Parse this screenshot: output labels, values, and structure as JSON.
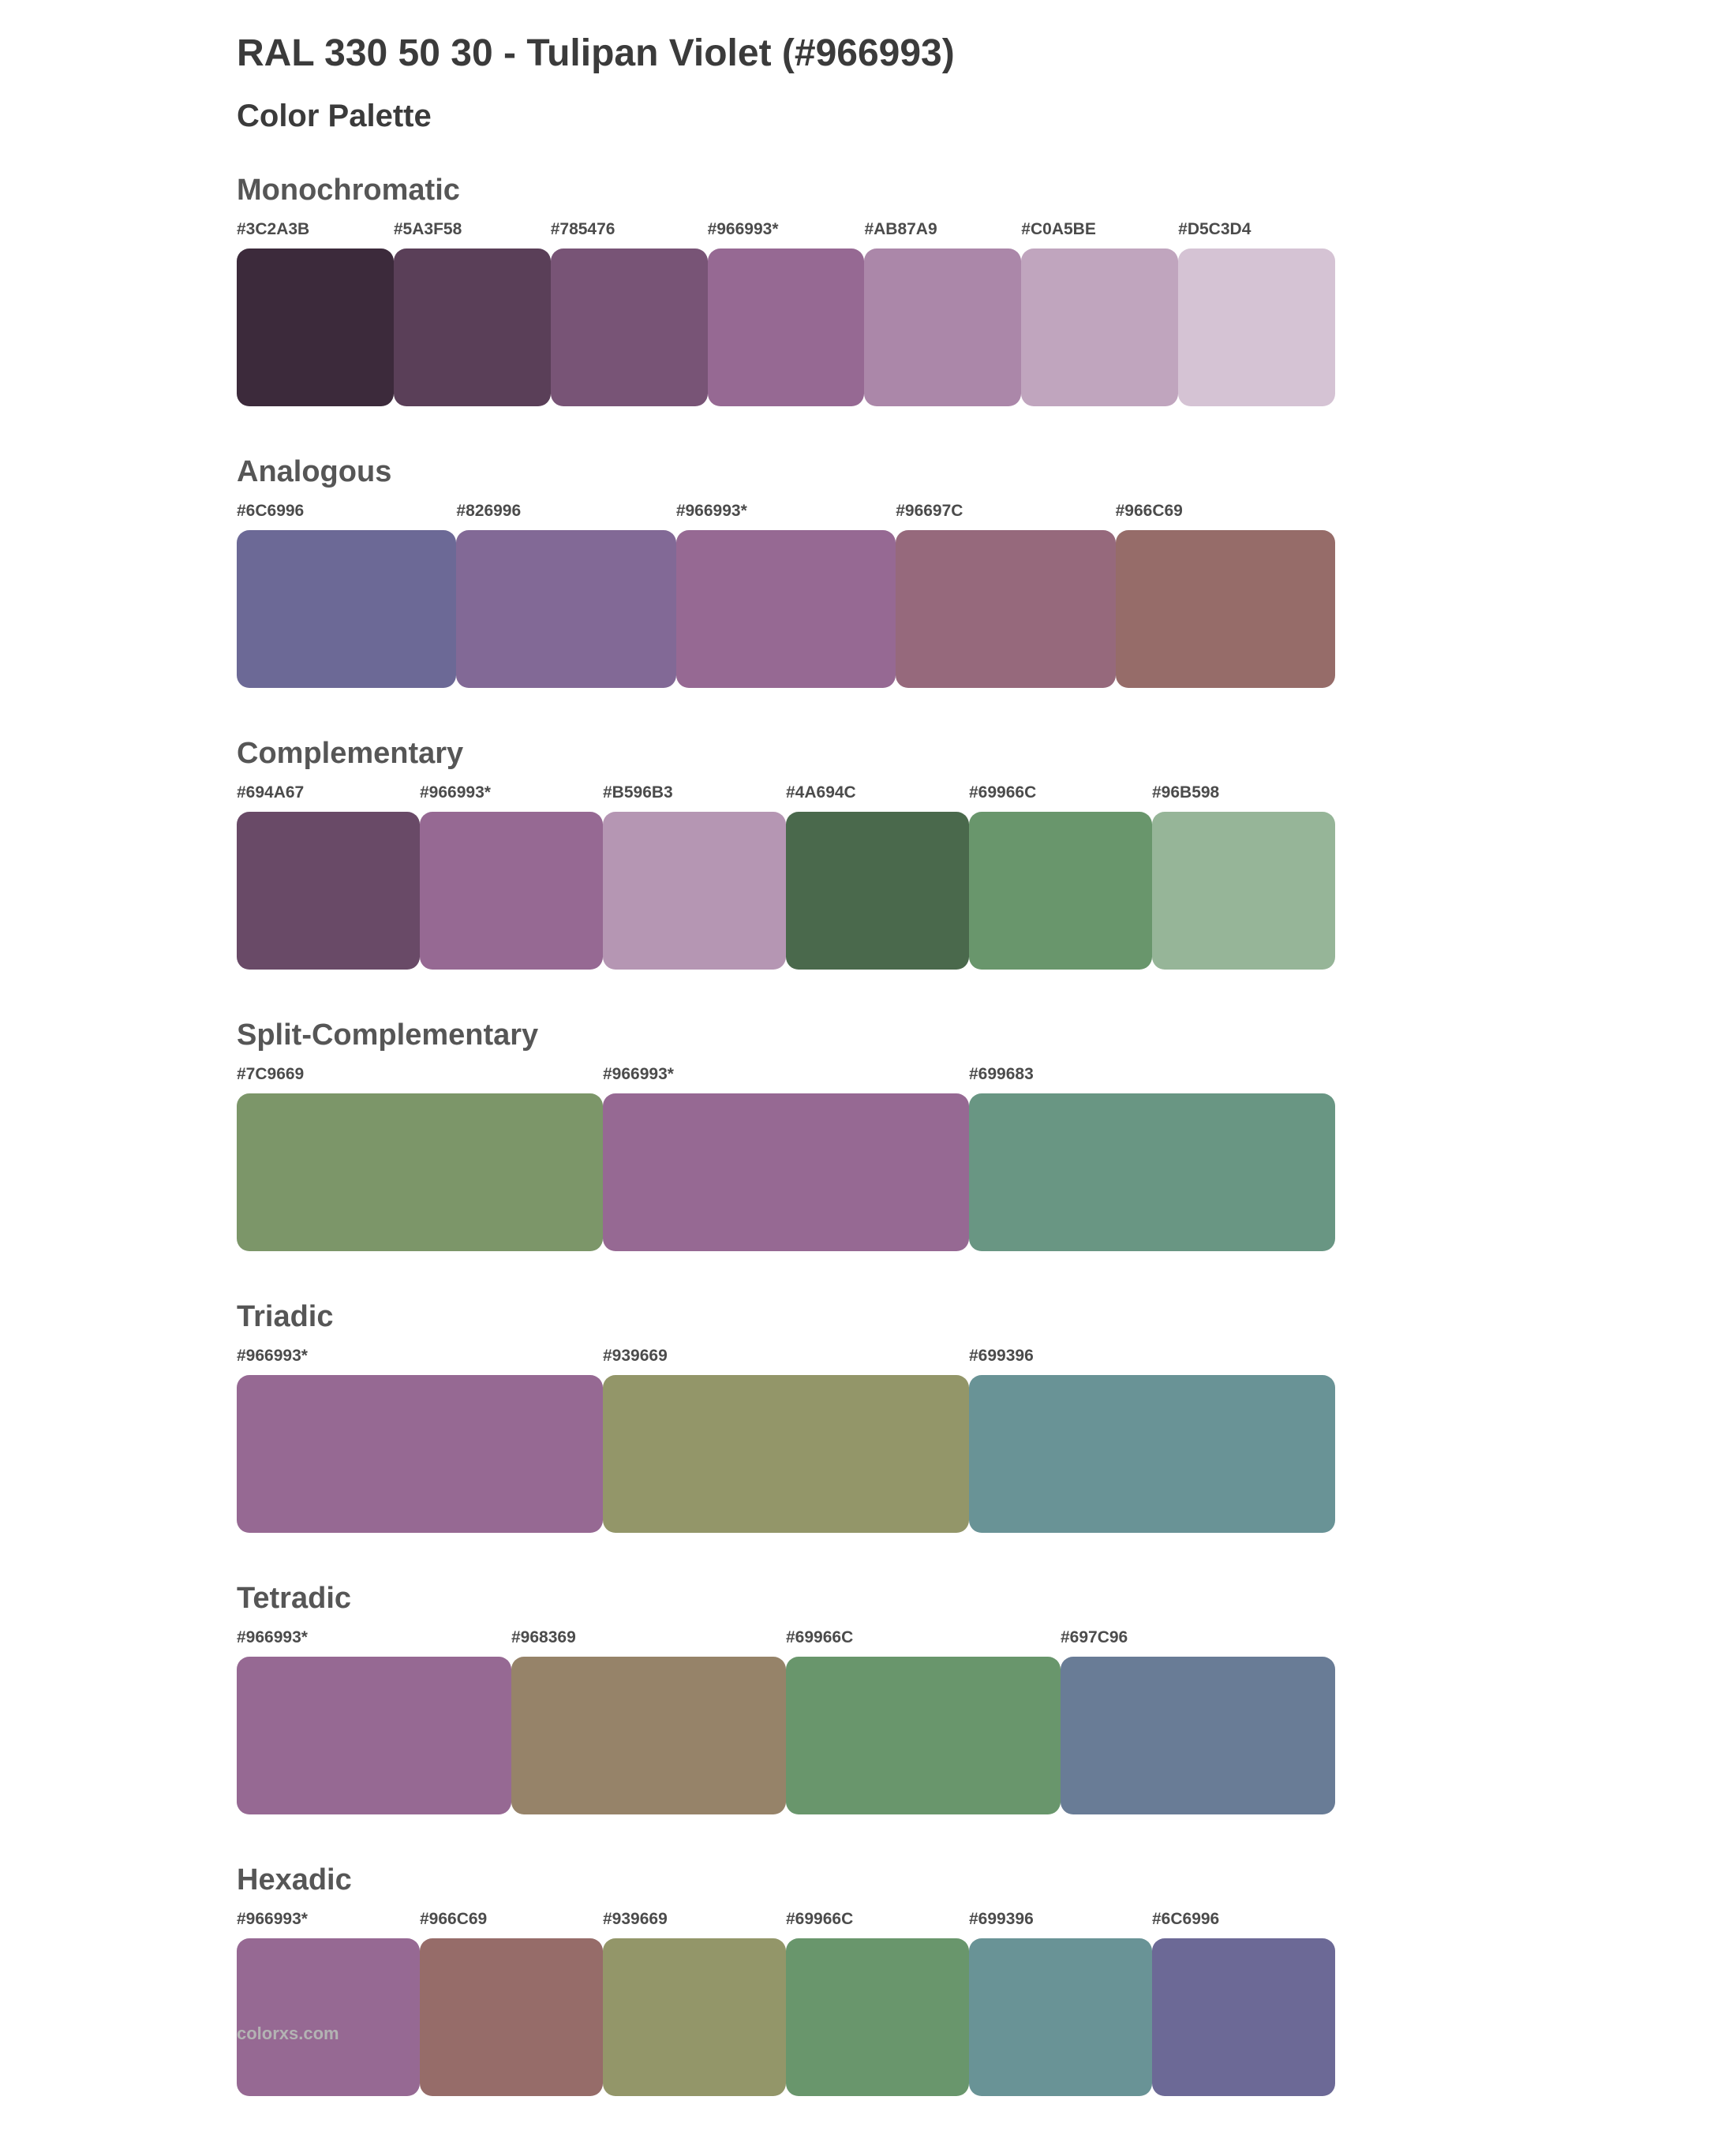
{
  "page": {
    "title": "RAL 330 50 30 - Tulipan Violet (#966993)",
    "subtitle": "Color Palette",
    "footer": "colorxs.com"
  },
  "base_color": "#966993",
  "sections": [
    {
      "name": "Monochromatic",
      "swatches": [
        {
          "label": "#3C2A3B",
          "color": "#3C2A3B"
        },
        {
          "label": "#5A3F58",
          "color": "#5A3F58"
        },
        {
          "label": "#785476",
          "color": "#785476"
        },
        {
          "label": "#966993*",
          "color": "#966993"
        },
        {
          "label": "#AB87A9",
          "color": "#AB87A9"
        },
        {
          "label": "#C0A5BE",
          "color": "#C0A5BE"
        },
        {
          "label": "#D5C3D4",
          "color": "#D5C3D4"
        }
      ]
    },
    {
      "name": "Analogous",
      "swatches": [
        {
          "label": "#6C6996",
          "color": "#6C6996"
        },
        {
          "label": "#826996",
          "color": "#826996"
        },
        {
          "label": "#966993*",
          "color": "#966993"
        },
        {
          "label": "#96697C",
          "color": "#96697C"
        },
        {
          "label": "#966C69",
          "color": "#966C69"
        }
      ]
    },
    {
      "name": "Complementary",
      "swatches": [
        {
          "label": "#694A67",
          "color": "#694A67"
        },
        {
          "label": "#966993*",
          "color": "#966993"
        },
        {
          "label": "#B596B3",
          "color": "#B596B3"
        },
        {
          "label": "#4A694C",
          "color": "#4A694C"
        },
        {
          "label": "#69966C",
          "color": "#69966C"
        },
        {
          "label": "#96B598",
          "color": "#96B598"
        }
      ]
    },
    {
      "name": "Split-Complementary",
      "swatches": [
        {
          "label": "#7C9669",
          "color": "#7C9669"
        },
        {
          "label": "#966993*",
          "color": "#966993"
        },
        {
          "label": "#699683",
          "color": "#699683"
        }
      ]
    },
    {
      "name": "Triadic",
      "swatches": [
        {
          "label": "#966993*",
          "color": "#966993"
        },
        {
          "label": "#939669",
          "color": "#939669"
        },
        {
          "label": "#699396",
          "color": "#699396"
        }
      ]
    },
    {
      "name": "Tetradic",
      "swatches": [
        {
          "label": "#966993*",
          "color": "#966993"
        },
        {
          "label": "#968369",
          "color": "#968369"
        },
        {
          "label": "#69966C",
          "color": "#69966C"
        },
        {
          "label": "#697C96",
          "color": "#697C96"
        }
      ]
    },
    {
      "name": "Hexadic",
      "swatches": [
        {
          "label": "#966993*",
          "color": "#966993"
        },
        {
          "label": "#966C69",
          "color": "#966C69"
        },
        {
          "label": "#939669",
          "color": "#939669"
        },
        {
          "label": "#69966C",
          "color": "#69966C"
        },
        {
          "label": "#699396",
          "color": "#699396"
        },
        {
          "label": "#6C6996",
          "color": "#6C6996"
        }
      ]
    }
  ]
}
